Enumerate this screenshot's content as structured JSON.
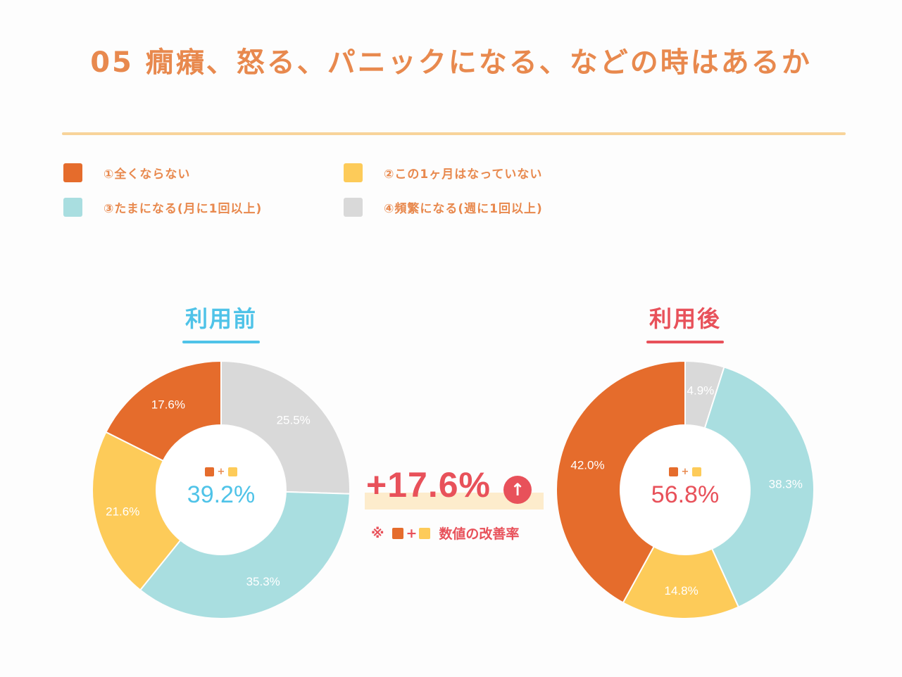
{
  "title": "05 癇癪、怒る、パニックになる、などの時はあるか",
  "legend": [
    {
      "label": "①全くならない",
      "color": "#e56c2c"
    },
    {
      "label": "②この1ヶ月はなっていない",
      "color": "#fdcb59"
    },
    {
      "label": "③たまになる(月に1回以上)",
      "color": "#a9dee0"
    },
    {
      "label": "④頻繁になる(週に1回以上)",
      "color": "#d9d9d9"
    }
  ],
  "combo_plus": "+",
  "improvement": {
    "value": "+17.6%",
    "arrow": "↑",
    "note_prefix": "※",
    "note_plus": "+",
    "note_text": "数値の改善率"
  },
  "chart_data": [
    {
      "type": "pie",
      "title": "利用前",
      "title_color": "#4fc3e8",
      "categories": [
        "①全くならない",
        "②この1ヶ月はなっていない",
        "③たまになる(月に1回以上)",
        "④頻繁になる(週に1回以上)"
      ],
      "values": [
        17.6,
        21.6,
        35.3,
        25.5
      ],
      "value_labels": [
        "17.6%",
        "21.6%",
        "35.3%",
        "25.5%"
      ],
      "colors": [
        "#e56c2c",
        "#fdcb59",
        "#a9dee0",
        "#d9d9d9"
      ],
      "center_value": "39.2%",
      "center_color": "#4fc3e8"
    },
    {
      "type": "pie",
      "title": "利用後",
      "title_color": "#e8515a",
      "categories": [
        "①全くならない",
        "②この1ヶ月はなっていない",
        "③たまになる(月に1回以上)",
        "④頻繁になる(週に1回以上)"
      ],
      "values": [
        42.0,
        14.8,
        38.3,
        4.9
      ],
      "value_labels": [
        "42.0%",
        "14.8%",
        "38.3%",
        "4.9%"
      ],
      "colors": [
        "#e56c2c",
        "#fdcb59",
        "#a9dee0",
        "#d9d9d9"
      ],
      "center_value": "56.8%",
      "center_color": "#e8515a"
    }
  ]
}
